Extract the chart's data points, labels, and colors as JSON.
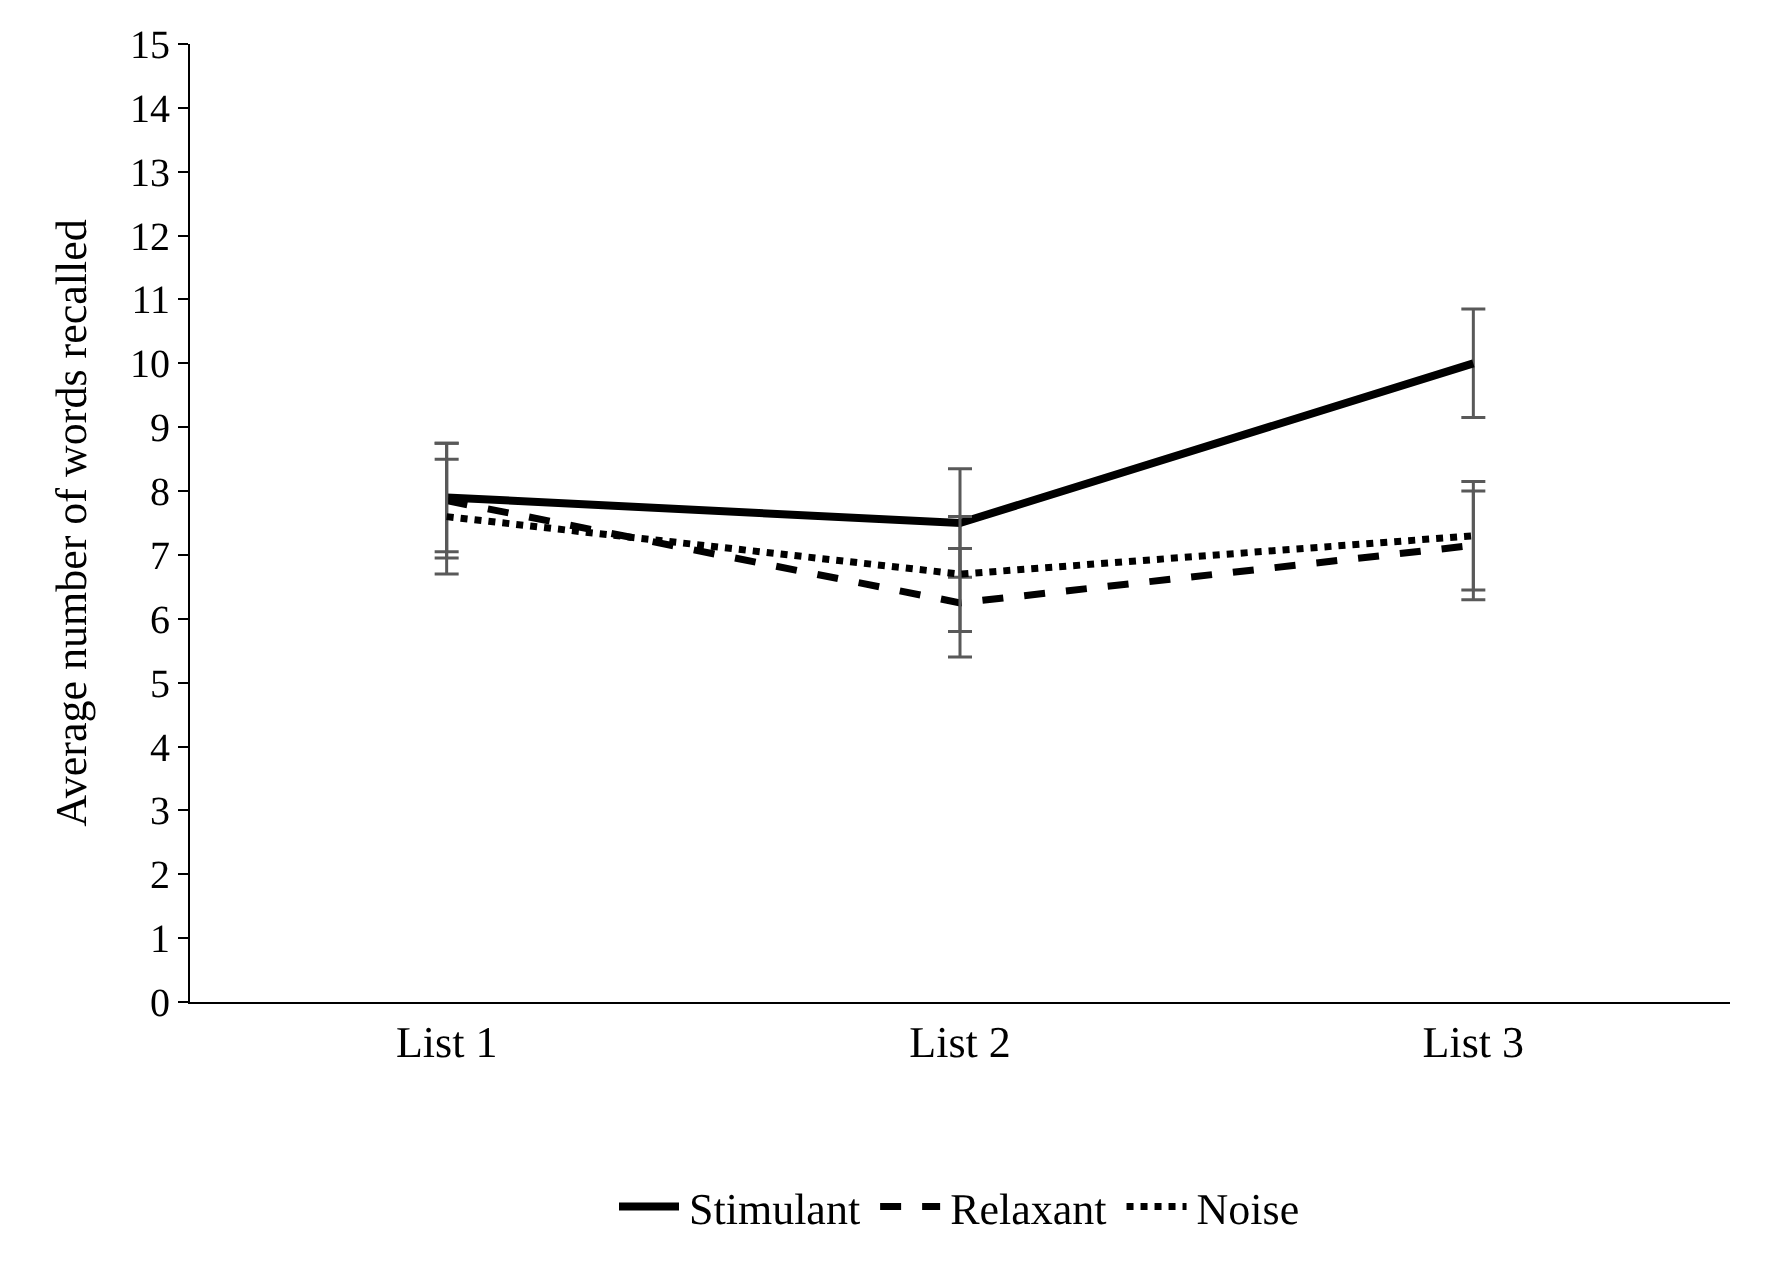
{
  "chart_data": {
    "type": "line",
    "ylabel": "Average number of words recalled",
    "categories": [
      "List 1",
      "List 2",
      "List 3"
    ],
    "ylim": [
      0,
      15
    ],
    "yticks": [
      0,
      1,
      2,
      3,
      4,
      5,
      6,
      7,
      8,
      9,
      10,
      11,
      12,
      13,
      14,
      15
    ],
    "legend": "bottom",
    "marker": "none",
    "series": [
      {
        "name": "Stimulant",
        "color": "#000000",
        "line_style": "solid",
        "values": [
          7.9,
          7.5,
          10.0
        ],
        "errors": [
          0.85,
          0.85,
          0.85
        ]
      },
      {
        "name": "Relaxant",
        "color": "#000000",
        "line_style": "dashed",
        "values": [
          7.85,
          6.25,
          7.15
        ],
        "errors": [
          0.9,
          0.85,
          0.85
        ]
      },
      {
        "name": "Noise",
        "color": "#000000",
        "line_style": "dotted",
        "values": [
          7.6,
          6.7,
          7.3
        ],
        "errors": [
          0.9,
          0.9,
          0.85
        ]
      }
    ]
  }
}
